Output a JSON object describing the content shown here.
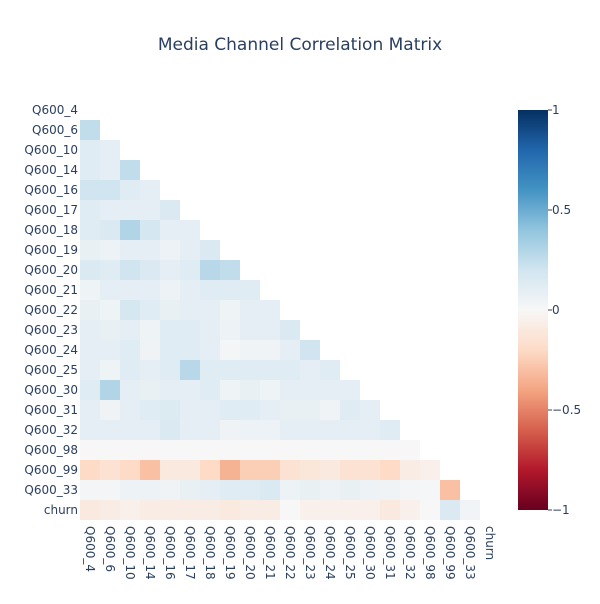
{
  "chart_data": {
    "type": "heatmap",
    "title": "Media Channel Correlation Matrix",
    "xlabel": "",
    "ylabel": "",
    "x_labels": [
      "Q600_4",
      "Q600_6",
      "Q600_10",
      "Q600_14",
      "Q600_16",
      "Q600_17",
      "Q600_18",
      "Q600_19",
      "Q600_20",
      "Q600_21",
      "Q600_22",
      "Q600_23",
      "Q600_24",
      "Q600_25",
      "Q600_30",
      "Q600_31",
      "Q600_32",
      "Q600_98",
      "Q600_99",
      "Q600_33",
      "churn"
    ],
    "y_labels": [
      "Q600_4",
      "Q600_6",
      "Q600_10",
      "Q600_14",
      "Q600_16",
      "Q600_17",
      "Q600_18",
      "Q600_19",
      "Q600_20",
      "Q600_21",
      "Q600_22",
      "Q600_23",
      "Q600_24",
      "Q600_25",
      "Q600_30",
      "Q600_31",
      "Q600_32",
      "Q600_98",
      "Q600_99",
      "Q600_33",
      "churn"
    ],
    "values": [
      [],
      [
        0.25
      ],
      [
        0.12,
        0.1
      ],
      [
        0.12,
        0.1,
        0.25
      ],
      [
        0.2,
        0.2,
        0.12,
        0.1
      ],
      [
        0.12,
        0.1,
        0.1,
        0.1,
        0.15
      ],
      [
        0.12,
        0.15,
        0.3,
        0.18,
        0.1,
        0.1
      ],
      [
        0.08,
        0.06,
        0.1,
        0.1,
        0.06,
        0.1,
        0.15
      ],
      [
        0.15,
        0.12,
        0.2,
        0.15,
        0.1,
        0.12,
        0.28,
        0.25
      ],
      [
        0.05,
        0.1,
        0.1,
        0.1,
        0.06,
        0.1,
        0.12,
        0.12,
        0.12
      ],
      [
        0.08,
        0.05,
        0.18,
        0.12,
        0.08,
        0.1,
        0.1,
        0.05,
        0.1,
        0.1
      ],
      [
        0.1,
        0.08,
        0.1,
        0.05,
        0.12,
        0.12,
        0.1,
        0.06,
        0.1,
        0.1,
        0.15
      ],
      [
        0.1,
        0.1,
        0.12,
        0.04,
        0.12,
        0.12,
        0.1,
        0.02,
        0.04,
        0.04,
        0.1,
        0.2
      ],
      [
        0.1,
        0.05,
        0.12,
        0.1,
        0.12,
        0.28,
        0.12,
        0.12,
        0.12,
        0.12,
        0.12,
        0.1,
        0.12
      ],
      [
        0.12,
        0.3,
        0.1,
        0.08,
        0.1,
        0.1,
        0.12,
        0.05,
        0.08,
        0.05,
        0.1,
        0.1,
        0.1,
        0.1
      ],
      [
        0.1,
        0.04,
        0.1,
        0.12,
        0.14,
        0.1,
        0.1,
        0.12,
        0.12,
        0.1,
        0.08,
        0.08,
        0.04,
        0.12,
        0.1
      ],
      [
        0.1,
        0.1,
        0.1,
        0.1,
        0.15,
        0.1,
        0.1,
        0.04,
        0.06,
        0.06,
        0.1,
        0.1,
        0.1,
        0.1,
        0.1,
        0.12
      ],
      [
        0.0,
        0.0,
        0.0,
        0.0,
        0.0,
        0.0,
        0.0,
        0.0,
        0.0,
        0.0,
        0.0,
        0.0,
        0.0,
        0.0,
        0.0,
        0.0,
        0.0
      ],
      [
        -0.2,
        -0.15,
        -0.2,
        -0.3,
        -0.1,
        -0.1,
        -0.2,
        -0.35,
        -0.25,
        -0.25,
        -0.15,
        -0.12,
        -0.1,
        -0.15,
        -0.15,
        -0.2,
        -0.08,
        -0.05
      ],
      [
        0.02,
        0.02,
        0.06,
        0.06,
        0.04,
        0.08,
        0.1,
        0.12,
        0.12,
        0.15,
        0.06,
        0.08,
        0.06,
        0.08,
        0.06,
        0.04,
        0.02,
        0.01,
        -0.3
      ],
      [
        -0.1,
        -0.08,
        -0.05,
        -0.08,
        -0.08,
        -0.08,
        -0.08,
        -0.1,
        -0.08,
        -0.08,
        0.0,
        -0.05,
        -0.05,
        -0.05,
        -0.05,
        -0.1,
        -0.05,
        0.0,
        0.15,
        0.03
      ]
    ],
    "colorbar": {
      "min": -1,
      "max": 1,
      "ticks": [
        1,
        0.5,
        0,
        -0.5,
        -1
      ],
      "tick_labels": [
        "1",
        "0.5",
        "0",
        "−0.5",
        "−1"
      ]
    },
    "colorscale": [
      [
        0.0,
        "#67001f"
      ],
      [
        0.1,
        "#b2182b"
      ],
      [
        0.2,
        "#d6604d"
      ],
      [
        0.3,
        "#f4a582"
      ],
      [
        0.4,
        "#fddbc7"
      ],
      [
        0.5,
        "#f7f7f7"
      ],
      [
        0.6,
        "#d1e5f0"
      ],
      [
        0.7,
        "#92c5de"
      ],
      [
        0.8,
        "#4393c3"
      ],
      [
        0.9,
        "#2166ac"
      ],
      [
        1.0,
        "#053061"
      ]
    ],
    "grid": false,
    "colorbar_position": "right"
  }
}
